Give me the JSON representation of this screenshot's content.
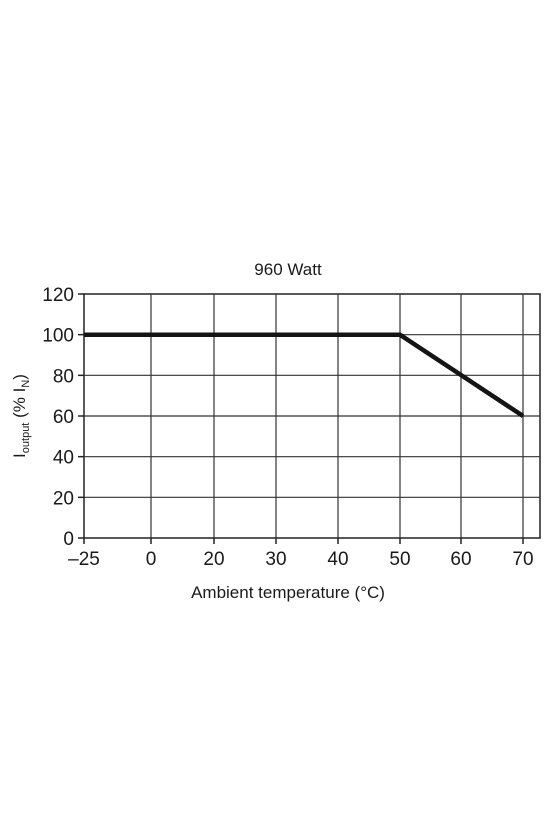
{
  "chart_data": {
    "type": "line",
    "title": "960 Watt",
    "xlabel": "Ambient temperature (°C)",
    "ylabel": {
      "main": "I",
      "sub1": "output",
      "mid": " (% I",
      "sub2": "N",
      "end": ")"
    },
    "x_ticks": [
      "-25",
      "0",
      "20",
      "30",
      "40",
      "50",
      "60",
      "70"
    ],
    "y_ticks": [
      0,
      20,
      40,
      60,
      80,
      100,
      120
    ],
    "ylim": [
      0,
      120
    ],
    "grid": true,
    "series": [
      {
        "points": [
          {
            "x": -25,
            "y": 100
          },
          {
            "x": 50,
            "y": 100
          },
          {
            "x": 70,
            "y": 60
          }
        ]
      }
    ]
  }
}
